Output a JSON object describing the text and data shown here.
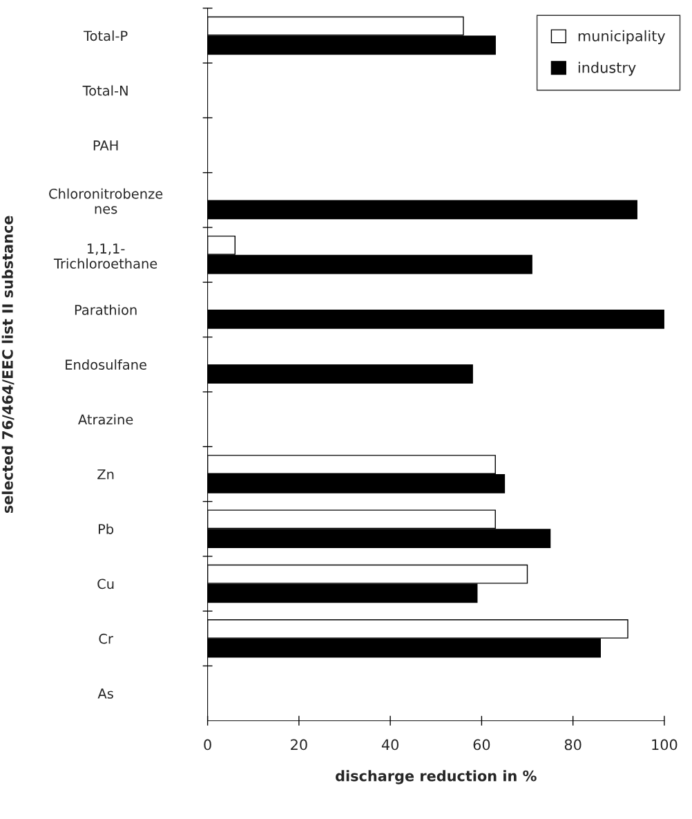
{
  "chart_data": {
    "type": "bar",
    "orientation": "horizontal",
    "xlabel": "discharge reduction in %",
    "ylabel": "selected 76/464/EEC list II substance",
    "categories": [
      "Total-P",
      "Total-N",
      "PAH",
      "Chloronitrobenze\nnes",
      "1,1,1-\nTrichloroethane",
      "Parathion",
      "Endosulfane",
      "Atrazine",
      "Zn",
      "Pb",
      "Cu",
      "Cr",
      "As"
    ],
    "series": [
      {
        "name": "municipality",
        "color": "#ffffff",
        "values": [
          56,
          null,
          null,
          null,
          6,
          null,
          null,
          null,
          63,
          63,
          70,
          92,
          null
        ]
      },
      {
        "name": "industry",
        "color": "#000000",
        "values": [
          63,
          null,
          null,
          94,
          71,
          100,
          58,
          null,
          65,
          75,
          59,
          86,
          null
        ]
      }
    ],
    "xlim": [
      0,
      100
    ],
    "xticks": [
      0,
      20,
      40,
      60,
      80,
      100
    ],
    "grid": false,
    "legend": "top right"
  }
}
